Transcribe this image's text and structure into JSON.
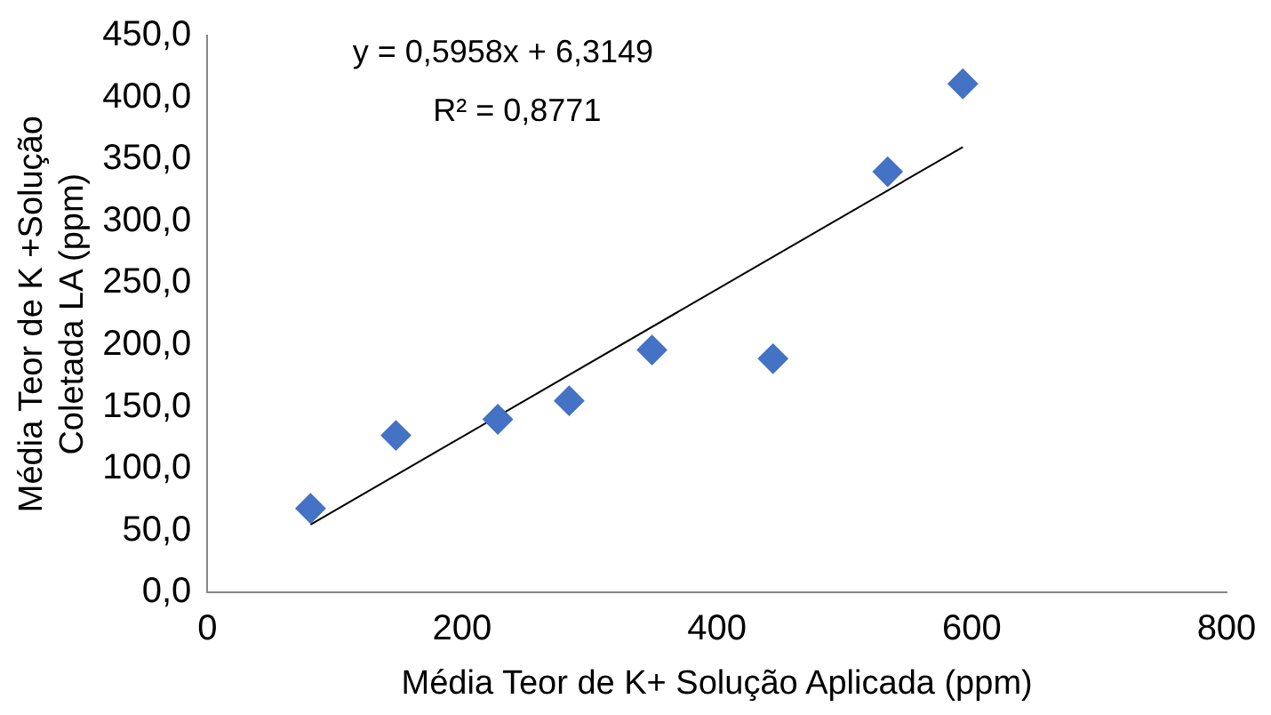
{
  "chart_data": {
    "type": "scatter",
    "xlabel": "Média Teor de K+ Solução Aplicada (ppm)",
    "ylabel": "Média Teor de K +Solução\nColetada LA (ppm)",
    "annotations": [
      "y = 0,5958x + 6,3149",
      "R² = 0,8771"
    ],
    "series": [
      {
        "type": "scatter",
        "color": "#4472c4",
        "marker": "diamond",
        "x": [
          81,
          148,
          228,
          284,
          349,
          444,
          534,
          593
        ],
        "values": [
          68,
          127,
          140,
          155,
          196,
          189,
          340,
          411
        ]
      },
      {
        "type": "line",
        "color": "#000000",
        "marker": "none",
        "x": [
          81,
          593
        ],
        "values": [
          55,
          360
        ]
      }
    ],
    "xlim": [
      0,
      800
    ],
    "xticks": [
      0,
      200,
      400,
      600,
      800
    ],
    "ylim": [
      0,
      450
    ],
    "yticks": [
      {
        "value": 0,
        "label": "0,0"
      },
      {
        "value": 50,
        "label": "50,0"
      },
      {
        "value": 100,
        "label": "100,0"
      },
      {
        "value": 150,
        "label": "150,0"
      },
      {
        "value": 200,
        "label": "200,0"
      },
      {
        "value": 250,
        "label": "250,0"
      },
      {
        "value": 300,
        "label": "300,0"
      },
      {
        "value": 350,
        "label": "350,0"
      },
      {
        "value": 400,
        "label": "400,0"
      },
      {
        "value": 450,
        "label": "450,0"
      }
    ],
    "grid": false,
    "legend": false
  }
}
